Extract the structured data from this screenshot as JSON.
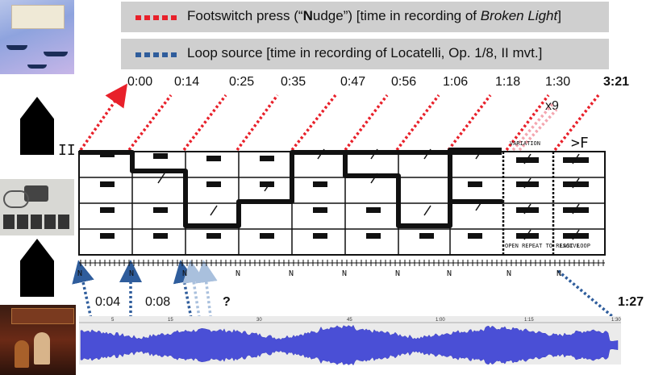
{
  "legend": {
    "red_prefix": "Footswitch press (“",
    "red_bold": "N",
    "red_mid": "udge”) [time in recording of ",
    "red_italic": "Broken Light",
    "red_suffix": "]",
    "blue_label": "Loop source [time in recording of Locatelli, Op. 1/8, II mvt.]"
  },
  "colors": {
    "red": "#e8202a",
    "blue": "#2f5d9c",
    "light_blue": "#a9c0dd",
    "pink": "#f4a6b0",
    "waveform": "#4a4fd6",
    "legend_bg": "#cfcfcf"
  },
  "top_times": [
    "0:00",
    "0:14",
    "0:25",
    "0:35",
    "0:47",
    "0:56",
    "1:06",
    "1:18",
    "1:30",
    "3:21"
  ],
  "repeat_label": "x9",
  "bottom_times": [
    "0:04",
    "0:08",
    "?",
    "1:27"
  ],
  "score": {
    "section_mark": "II",
    "variation_label": "VARIATION",
    "dynamic": ">F",
    "open_repeat": "OPEN REPEAT TO RESOLVE",
    "last_loop": "LAST LOOP",
    "nudge_mark": "N"
  },
  "waveform_ticks": [
    "5",
    "15",
    "30",
    "45",
    "1:00",
    "1:15",
    "1:30"
  ],
  "icons": {
    "album_top": "album-cover-icon",
    "pedal_top": "pentagon-pointer-icon",
    "footswitch": "footswitch-photo-icon",
    "pedal_bottom": "pentagon-pointer-icon",
    "album_bottom": "album-cover-icon"
  }
}
